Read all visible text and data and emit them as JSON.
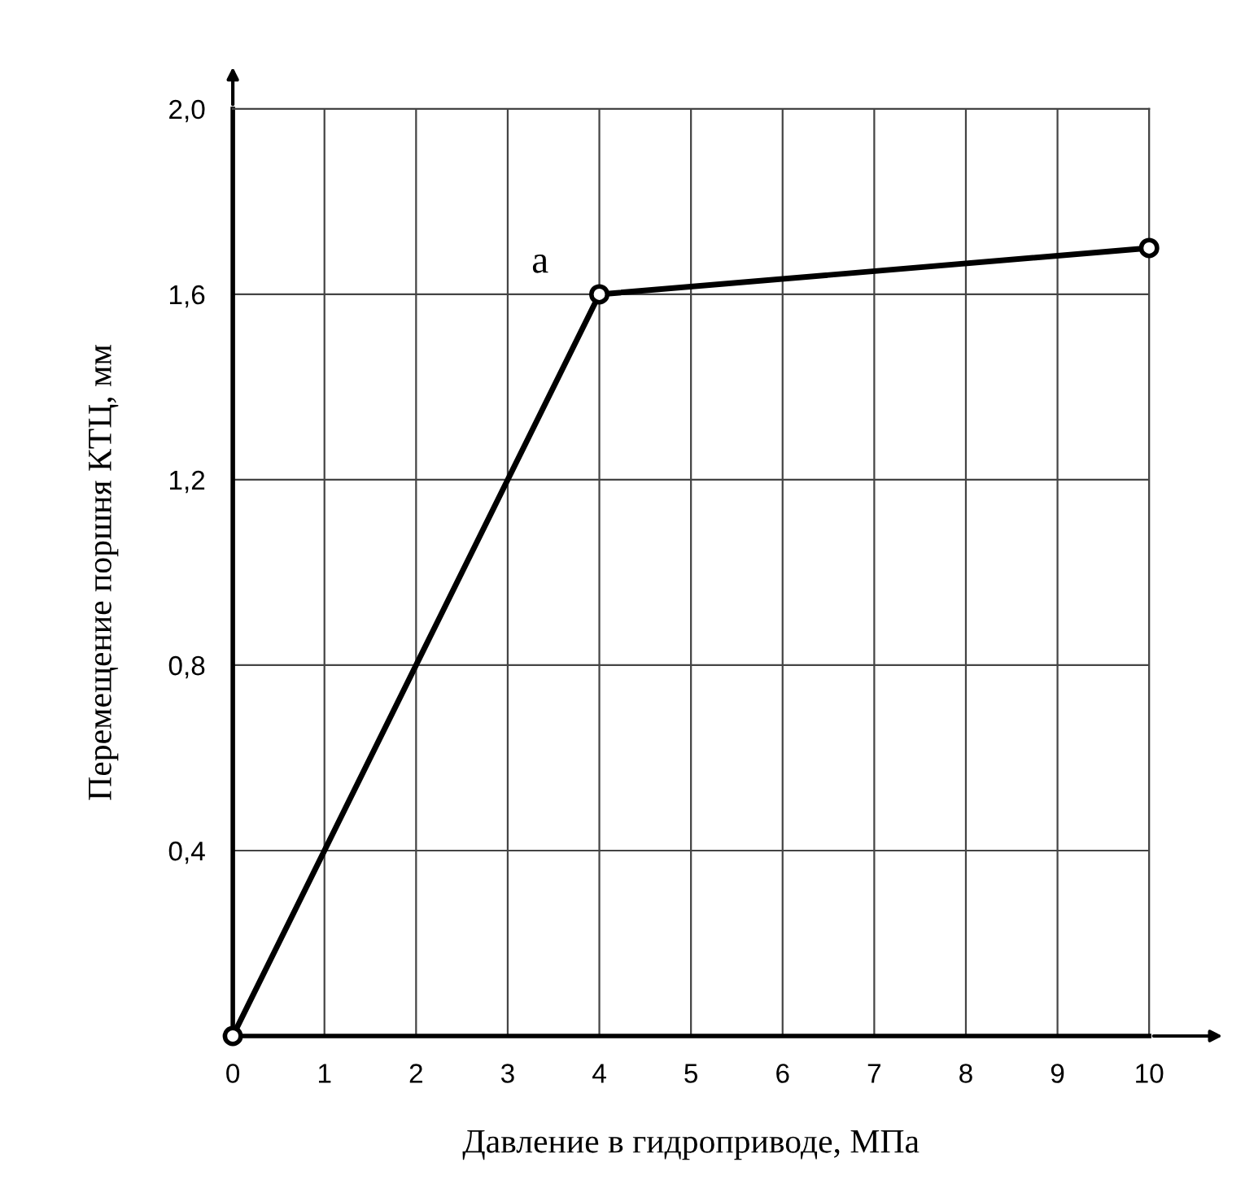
{
  "chart_data": {
    "type": "line",
    "xlabel": "Давление в гидроприводе, МПа",
    "ylabel": "Перемещение поршня КТЦ, мм",
    "x": [
      0,
      4,
      10
    ],
    "series": [
      {
        "color": "#000000",
        "values": [
          0,
          1.6,
          1.7
        ]
      }
    ],
    "marker": "circle",
    "line_style": "solid",
    "grid": true,
    "xlim": [
      0,
      10
    ],
    "xticks": [
      0,
      1,
      2,
      3,
      4,
      5,
      6,
      7,
      8,
      9,
      10
    ],
    "ylim": [
      0,
      2.0
    ],
    "yticks": [
      {
        "value": 0,
        "label": null
      },
      {
        "value": 0.4,
        "label": "0,4"
      },
      {
        "value": 0.8,
        "label": "0,8"
      },
      {
        "value": 1.2,
        "label": "1,2"
      },
      {
        "value": 1.6,
        "label": "1,6"
      },
      {
        "value": 2.0,
        "label": "2,0"
      }
    ],
    "annotations": [
      {
        "text": "a",
        "x": 4,
        "y": 1.6
      }
    ]
  }
}
